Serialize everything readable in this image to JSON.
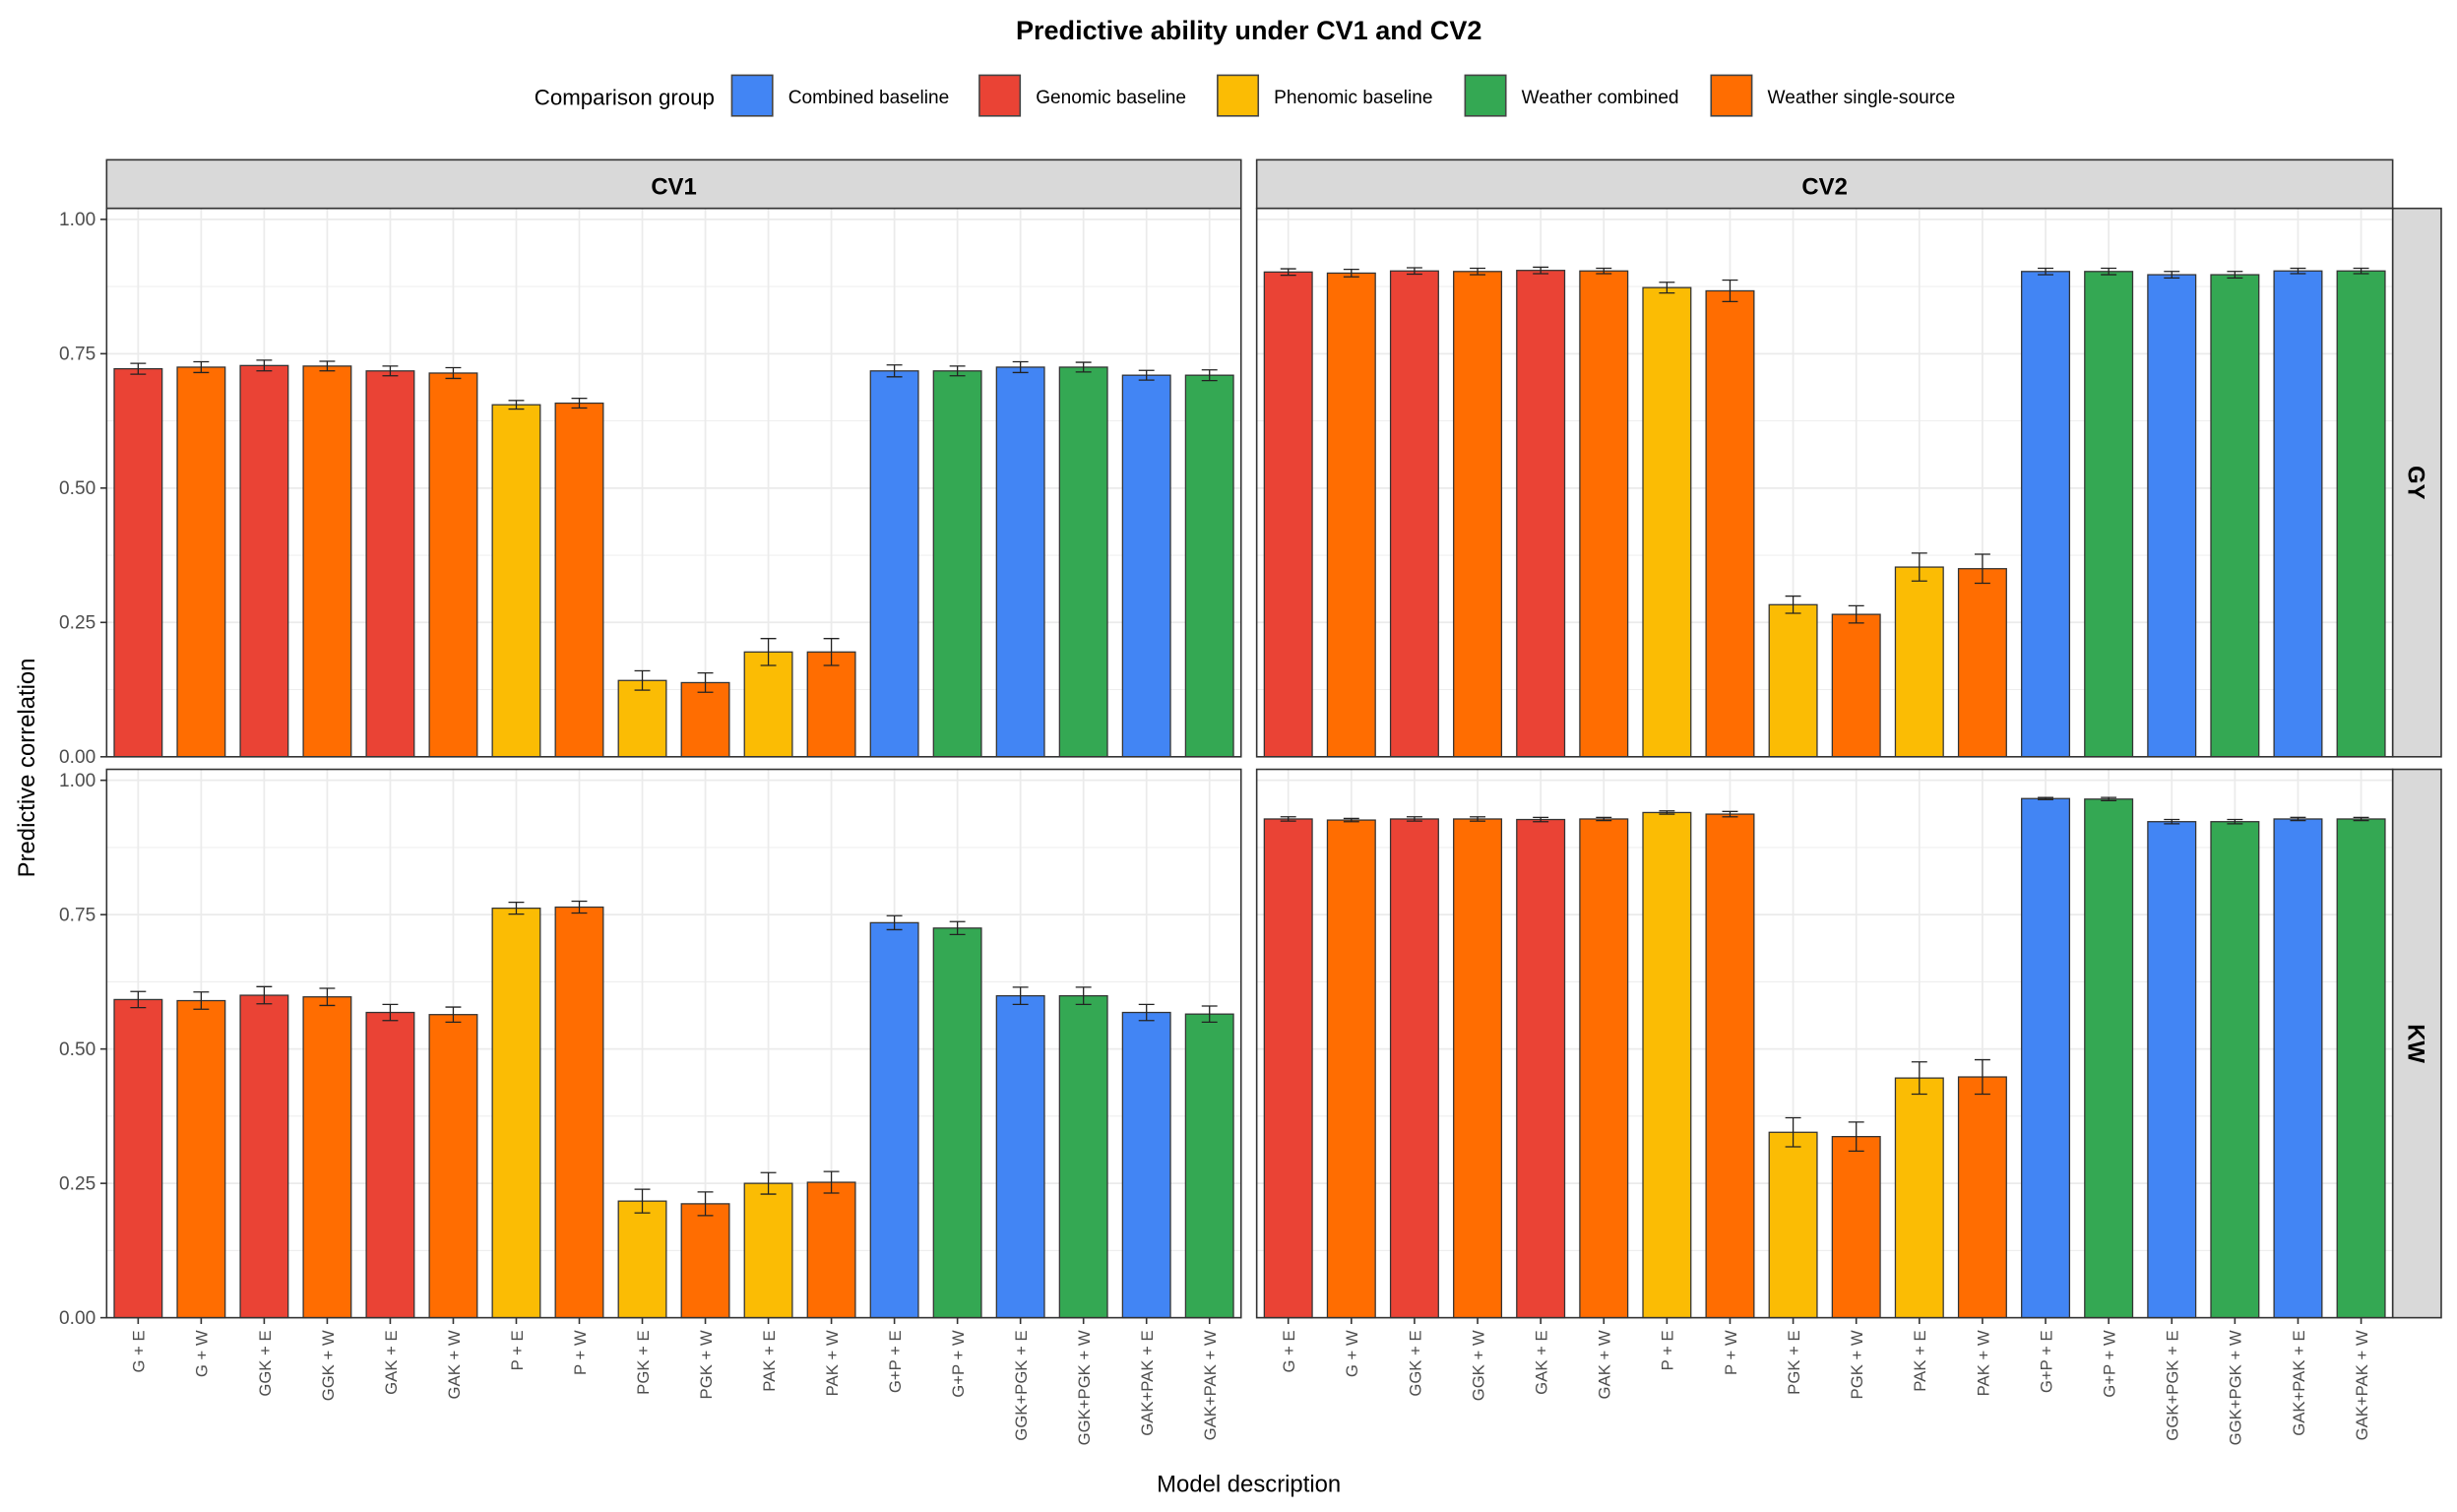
{
  "chart_data": {
    "type": "bar",
    "title": "Predictive ability under CV1 and CV2",
    "xlabel": "Model description",
    "ylabel": "Predictive correlation",
    "ylim": [
      0,
      1
    ],
    "yticks": [
      "0.00",
      "0.25",
      "0.50",
      "0.75",
      "1.00"
    ],
    "grid": true,
    "legend": {
      "title": "Comparison group",
      "placement": "top",
      "entries": [
        {
          "name": "Combined baseline",
          "color": "#4285F4"
        },
        {
          "name": "Genomic baseline",
          "color": "#EA4335"
        },
        {
          "name": "Phenomic baseline",
          "color": "#FBBC04"
        },
        {
          "name": "Weather combined",
          "color": "#34A853"
        },
        {
          "name": "Weather single-source",
          "color": "#FF6D01"
        }
      ]
    },
    "columns": [
      "CV1",
      "CV2"
    ],
    "rows": [
      "GY",
      "KW"
    ],
    "categories": [
      "G + E",
      "G + W",
      "GGK + E",
      "GGK + W",
      "GAK + E",
      "GAK + W",
      "P + E",
      "P + W",
      "PGK + E",
      "PGK + W",
      "PAK + E",
      "PAK + W",
      "G+P + E",
      "G+P + W",
      "GGK+PGK + E",
      "GGK+PGK + W",
      "GAK+PAK + E",
      "GAK+PAK + W"
    ],
    "groups": [
      "Genomic baseline",
      "Weather single-source",
      "Genomic baseline",
      "Weather single-source",
      "Genomic baseline",
      "Weather single-source",
      "Phenomic baseline",
      "Weather single-source",
      "Phenomic baseline",
      "Weather single-source",
      "Phenomic baseline",
      "Weather single-source",
      "Combined baseline",
      "Weather combined",
      "Combined baseline",
      "Weather combined",
      "Combined baseline",
      "Weather combined"
    ],
    "panels": [
      {
        "row": "GY",
        "column": "CV1",
        "values": [
          0.722,
          0.725,
          0.728,
          0.727,
          0.718,
          0.714,
          0.655,
          0.658,
          0.142,
          0.138,
          0.195,
          0.195,
          0.718,
          0.718,
          0.725,
          0.725,
          0.71,
          0.71
        ],
        "errors": [
          0.01,
          0.01,
          0.01,
          0.009,
          0.009,
          0.01,
          0.008,
          0.009,
          0.018,
          0.018,
          0.025,
          0.025,
          0.011,
          0.009,
          0.01,
          0.009,
          0.009,
          0.01
        ]
      },
      {
        "row": "GY",
        "column": "CV2",
        "values": [
          0.902,
          0.9,
          0.904,
          0.903,
          0.905,
          0.904,
          0.873,
          0.867,
          0.283,
          0.265,
          0.353,
          0.35,
          0.903,
          0.903,
          0.897,
          0.897,
          0.904,
          0.904
        ],
        "errors": [
          0.006,
          0.007,
          0.006,
          0.006,
          0.006,
          0.005,
          0.01,
          0.02,
          0.016,
          0.016,
          0.026,
          0.027,
          0.006,
          0.006,
          0.006,
          0.006,
          0.005,
          0.005
        ]
      },
      {
        "row": "KW",
        "column": "CV1",
        "values": [
          0.592,
          0.59,
          0.6,
          0.597,
          0.568,
          0.564,
          0.762,
          0.764,
          0.217,
          0.212,
          0.25,
          0.252,
          0.735,
          0.725,
          0.599,
          0.599,
          0.568,
          0.565
        ],
        "errors": [
          0.015,
          0.016,
          0.016,
          0.016,
          0.015,
          0.014,
          0.011,
          0.011,
          0.022,
          0.022,
          0.02,
          0.02,
          0.013,
          0.012,
          0.016,
          0.016,
          0.015,
          0.015
        ]
      },
      {
        "row": "KW",
        "column": "CV2",
        "values": [
          0.928,
          0.926,
          0.928,
          0.928,
          0.927,
          0.928,
          0.94,
          0.937,
          0.345,
          0.337,
          0.446,
          0.448,
          0.966,
          0.965,
          0.923,
          0.923,
          0.928,
          0.928
        ],
        "errors": [
          0.004,
          0.003,
          0.004,
          0.004,
          0.004,
          0.003,
          0.003,
          0.005,
          0.027,
          0.027,
          0.03,
          0.032,
          0.002,
          0.003,
          0.004,
          0.004,
          0.003,
          0.003
        ]
      }
    ]
  }
}
